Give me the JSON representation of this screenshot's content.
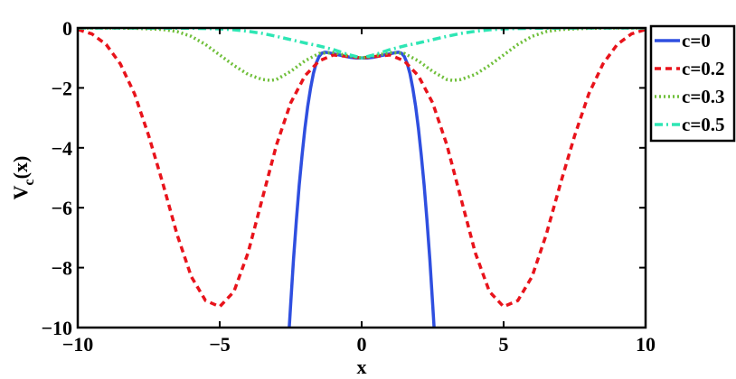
{
  "chart_data": {
    "type": "line",
    "title": "",
    "xlabel": "x",
    "ylabel_main": "V",
    "ylabel_sub": "c",
    "ylabel_tail": "(x)",
    "xlim": [
      -10,
      10
    ],
    "ylim": [
      -10,
      0
    ],
    "xticks": [
      -10,
      -5,
      0,
      5,
      10
    ],
    "yticks": [
      0,
      -2,
      -4,
      -6,
      -8,
      -10
    ],
    "xtick_labels": [
      "−10",
      "−5",
      "0",
      "5",
      "10"
    ],
    "ytick_labels": [
      "0",
      "−2",
      "−4",
      "−6",
      "−8",
      "−10"
    ],
    "grid": false,
    "legend_position": "outside-top-right",
    "series": [
      {
        "name": "c=0",
        "color": "#2f4fe0",
        "style": "solid",
        "x": [
          -2.55,
          -2.5,
          -2.4,
          -2.3,
          -2.2,
          -2.1,
          -2.0,
          -1.9,
          -1.8,
          -1.7,
          -1.6,
          -1.5,
          -1.4,
          -1.3,
          -1.2,
          -1.1,
          -1.0,
          -0.9,
          -0.8,
          -0.7,
          -0.6,
          -0.5,
          -0.4,
          -0.3,
          -0.2,
          -0.1,
          0.0,
          0.1,
          0.2,
          0.3,
          0.4,
          0.5,
          0.6,
          0.7,
          0.8,
          0.9,
          1.0,
          1.1,
          1.2,
          1.3,
          1.4,
          1.5,
          1.6,
          1.7,
          1.8,
          1.9,
          2.0,
          2.1,
          2.2,
          2.3,
          2.4,
          2.5,
          2.55
        ],
        "y": [
          -10.0,
          -9.21,
          -7.73,
          -6.41,
          -5.25,
          -4.24,
          -3.36,
          -2.62,
          -2.01,
          -1.52,
          -1.17,
          -0.95,
          -0.84,
          -0.81,
          -0.82,
          -0.84,
          -0.86,
          -0.88,
          -0.9,
          -0.92,
          -0.94,
          -0.96,
          -0.98,
          -0.99,
          -1.0,
          -1.0,
          -1.0,
          -1.0,
          -1.0,
          -0.99,
          -0.98,
          -0.96,
          -0.94,
          -0.92,
          -0.9,
          -0.88,
          -0.86,
          -0.84,
          -0.82,
          -0.81,
          -0.84,
          -0.95,
          -1.17,
          -1.52,
          -2.01,
          -2.62,
          -3.36,
          -4.24,
          -5.25,
          -6.41,
          -7.73,
          -9.21,
          -10.0
        ]
      },
      {
        "name": "c=0.2",
        "color": "#e8131b",
        "style": "dashed",
        "x": [
          -10,
          -9.5,
          -9,
          -8.5,
          -8,
          -7.5,
          -7,
          -6.5,
          -6,
          -5.5,
          -5,
          -4.5,
          -4,
          -3.5,
          -3,
          -2.5,
          -2,
          -1.5,
          -1,
          -0.5,
          0,
          0.5,
          1,
          1.5,
          2,
          2.5,
          3,
          3.5,
          4,
          4.5,
          5,
          5.5,
          6,
          6.5,
          7,
          7.5,
          8,
          8.5,
          9,
          9.5,
          10
        ],
        "y": [
          -0.05,
          -0.2,
          -0.55,
          -1.2,
          -2.2,
          -3.6,
          -5.2,
          -6.9,
          -8.3,
          -9.1,
          -9.3,
          -8.8,
          -7.5,
          -5.7,
          -3.9,
          -2.5,
          -1.6,
          -1.1,
          -0.9,
          -0.95,
          -1.0,
          -0.95,
          -0.9,
          -1.1,
          -1.6,
          -2.5,
          -3.9,
          -5.7,
          -7.5,
          -8.8,
          -9.3,
          -9.1,
          -8.3,
          -6.9,
          -5.2,
          -3.6,
          -2.2,
          -1.2,
          -0.55,
          -0.2,
          -0.05
        ]
      },
      {
        "name": "c=0.3",
        "color": "#6fbf3a",
        "style": "dotted",
        "x": [
          -10,
          -9,
          -8,
          -7,
          -6.5,
          -6,
          -5.5,
          -5,
          -4.5,
          -4,
          -3.5,
          -3.2,
          -3,
          -2.5,
          -2,
          -1.5,
          -1,
          -0.5,
          0,
          0.5,
          1,
          1.5,
          2,
          2.5,
          3,
          3.2,
          3.5,
          4,
          4.5,
          5,
          5.5,
          6,
          6.5,
          7,
          8,
          9,
          10
        ],
        "y": [
          0,
          0,
          -0.01,
          -0.05,
          -0.12,
          -0.28,
          -0.55,
          -0.9,
          -1.25,
          -1.55,
          -1.72,
          -1.75,
          -1.72,
          -1.45,
          -1.1,
          -0.85,
          -0.82,
          -0.92,
          -1.0,
          -0.92,
          -0.82,
          -0.85,
          -1.1,
          -1.45,
          -1.72,
          -1.75,
          -1.72,
          -1.55,
          -1.25,
          -0.9,
          -0.55,
          -0.28,
          -0.12,
          -0.05,
          -0.01,
          0,
          0
        ]
      },
      {
        "name": "c=0.5",
        "color": "#2ee6b4",
        "style": "dashdot",
        "x": [
          -10,
          -8,
          -6,
          -5,
          -4.5,
          -4,
          -3.5,
          -3,
          -2.5,
          -2,
          -1.5,
          -1,
          -0.5,
          0,
          0.5,
          1,
          1.5,
          2,
          2.5,
          3,
          3.5,
          4,
          4.5,
          5,
          6,
          8,
          10
        ],
        "y": [
          0,
          0,
          -0.01,
          -0.03,
          -0.06,
          -0.11,
          -0.18,
          -0.28,
          -0.39,
          -0.5,
          -0.6,
          -0.72,
          -0.88,
          -1.0,
          -0.88,
          -0.72,
          -0.6,
          -0.5,
          -0.39,
          -0.28,
          -0.18,
          -0.11,
          -0.06,
          -0.03,
          -0.01,
          0,
          0
        ]
      }
    ]
  }
}
